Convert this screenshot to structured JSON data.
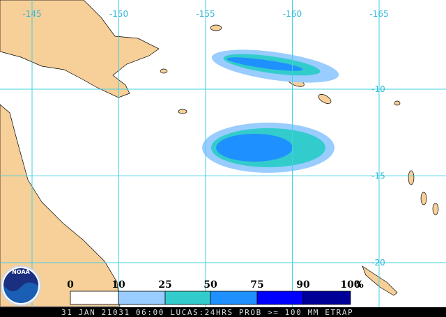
{
  "map": {
    "longitudes": [
      "-145",
      "-150",
      "-155",
      "-160",
      "-165"
    ],
    "latitudes": [
      "-10",
      "-15",
      "-20"
    ],
    "legend": {
      "labels": [
        "0",
        "10",
        "25",
        "50",
        "75",
        "90",
        "100"
      ],
      "unit": "%",
      "colors": [
        "#ffffff",
        "#99ccff",
        "#33cccc",
        "#1e90ff",
        "#0000ff",
        "#000099"
      ]
    },
    "logo": "NOAA",
    "footer": "31 JAN 21031 06:00 LUCAS:24HRS PROB >= 100 MM ETRAP"
  }
}
